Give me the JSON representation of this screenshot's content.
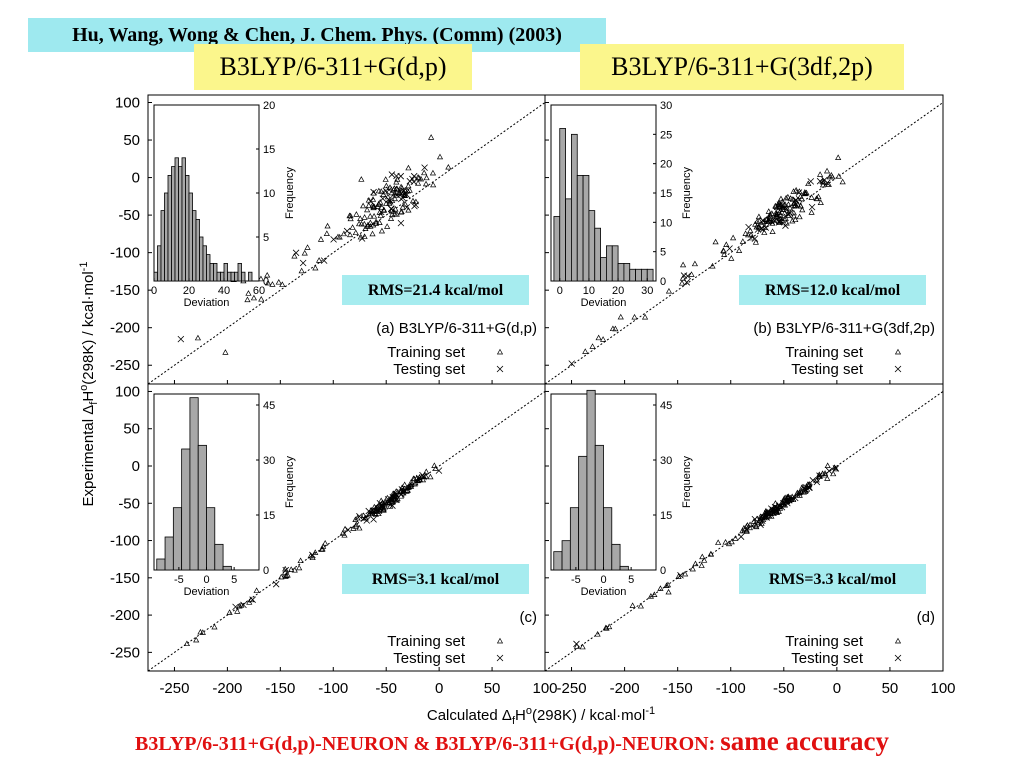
{
  "header": {
    "citation": "Hu, Wang, Wong & Chen, J. Chem. Phys. (Comm) (2003)",
    "method_left": "B3LYP/6-311+G(d,p)",
    "method_right": "B3LYP/6-311+G(3df,2p)"
  },
  "footer": {
    "part1": "B3LYP/6-311+G(d,p)-NEURON & B3LYP/6-311+G(d,p)-NEURON: ",
    "part2": "same accuracy"
  },
  "colors": {
    "citation_bg": "#9ee9ef",
    "method_bg": "#fbf68c",
    "rms_bg": "#a6ecef",
    "footer_text": "#e01010"
  },
  "chart_data": {
    "type": "scatter",
    "xlabel_prefix": "Calculated Δ",
    "xlabel_sub": "f",
    "xlabel_mid": "H",
    "xlabel_sup": "o",
    "xlabel_suffix": "(298K) / kcal·mol",
    "xlabel_exp": "-1",
    "ylabel_prefix": "Experimental Δ",
    "ylabel_sub": "f",
    "ylabel_mid": "H",
    "ylabel_sup": "o",
    "ylabel_suffix": "(298K) / kcal·mol",
    "ylabel_exp": "-1",
    "xlim": [
      -275,
      100
    ],
    "ylim": [
      -275,
      110
    ],
    "x_ticks": [
      "-250",
      "-200",
      "-150",
      "-100",
      "-50",
      "0",
      "50",
      "100"
    ],
    "y_ticks": [
      "100",
      "50",
      "0",
      "-50",
      "-100",
      "-150",
      "-200",
      "-250"
    ],
    "legend": {
      "training": "Training set",
      "testing": "Testing set"
    },
    "panels": [
      {
        "id": "a",
        "label": "(a) B3LYP/6-311+G(d,p)",
        "rms": "RMS=21.4 kcal/mol",
        "spread": 14,
        "offset": 22,
        "hist": {
          "xlabel": "Deviation",
          "ylabel": "Frequency",
          "xlim": [
            0,
            60
          ],
          "ylim": [
            0,
            20
          ],
          "x_ticks": [
            "0",
            "20",
            "40",
            "60"
          ],
          "y_ticks": [
            "0",
            "5",
            "10",
            "15",
            "20"
          ],
          "bin_start": 0,
          "bin_width": 2,
          "counts": [
            1,
            4,
            8,
            10,
            12,
            13,
            14,
            13,
            14,
            12,
            10,
            8,
            7,
            5,
            4,
            3,
            2,
            2,
            1,
            1,
            2,
            1,
            1,
            1,
            2,
            1,
            0,
            1
          ]
        }
      },
      {
        "id": "b",
        "label": "(b) B3LYP/6-311+G(3df,2p)",
        "rms": "RMS=12.0 kcal/mol",
        "spread": 9,
        "offset": 10,
        "hist": {
          "xlabel": "Deviation",
          "ylabel": "Frequency",
          "xlim": [
            -3,
            33
          ],
          "ylim": [
            0,
            30
          ],
          "x_ticks": [
            "0",
            "10",
            "20",
            "30"
          ],
          "y_ticks": [
            "0",
            "5",
            "10",
            "15",
            "20",
            "25",
            "30"
          ],
          "bin_start": -2,
          "bin_width": 2,
          "counts": [
            11,
            26,
            14,
            25,
            18,
            18,
            12,
            9,
            4,
            6,
            6,
            3,
            3,
            2,
            2,
            2,
            2
          ]
        }
      },
      {
        "id": "c",
        "label": "(c)",
        "rms": "RMS=3.1 kcal/mol",
        "spread": 3.5,
        "offset": 0,
        "hist": {
          "xlabel": "Deviation",
          "ylabel": "Frequency",
          "xlim": [
            -9.5,
            9.5
          ],
          "ylim": [
            0,
            48
          ],
          "x_ticks": [
            "-5",
            "0",
            "5"
          ],
          "y_ticks": [
            "0",
            "15",
            "30",
            "45"
          ],
          "bin_start": -9,
          "bin_width": 1.5,
          "counts": [
            3,
            9,
            17,
            33,
            47,
            34,
            17,
            7,
            1
          ]
        }
      },
      {
        "id": "d",
        "label": "(d)",
        "rms": "RMS=3.3 kcal/mol",
        "spread": 3.5,
        "offset": 0,
        "hist": {
          "xlabel": "Deviation",
          "ylabel": "Frequency",
          "xlim": [
            -9.5,
            9.5
          ],
          "ylim": [
            0,
            48
          ],
          "x_ticks": [
            "-5",
            "0",
            "5"
          ],
          "y_ticks": [
            "0",
            "15",
            "30",
            "45"
          ],
          "bin_start": -9,
          "bin_width": 1.5,
          "counts": [
            5,
            8,
            17,
            31,
            49,
            34,
            17,
            7,
            1
          ]
        }
      }
    ]
  }
}
